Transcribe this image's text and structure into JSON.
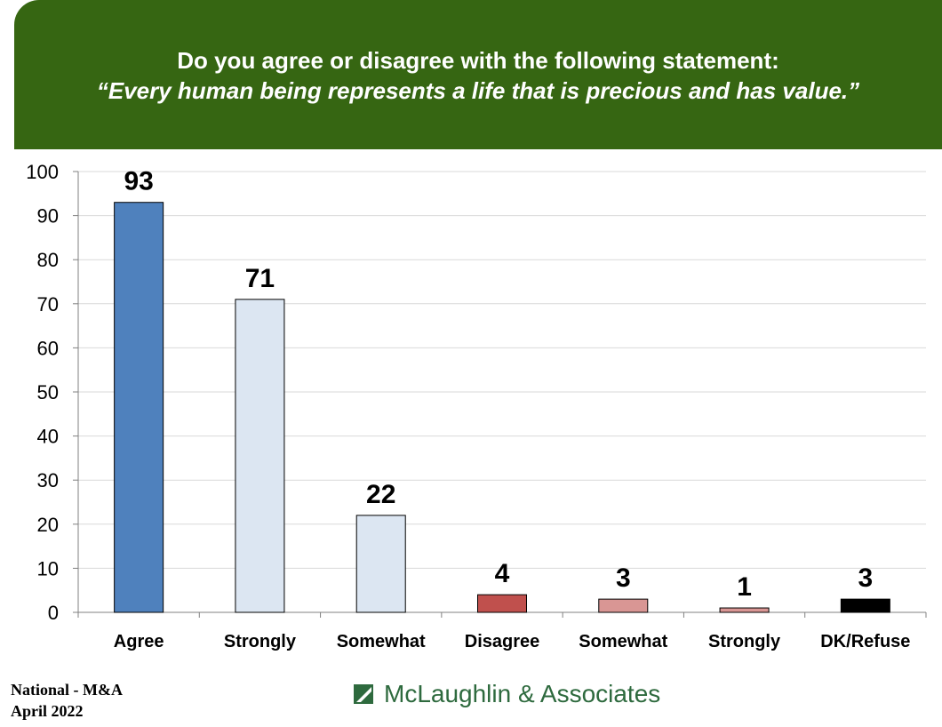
{
  "header": {
    "question": "Do you agree or disagree with the following statement:",
    "statement": "“Every human being represents a life that is precious and has value.”",
    "background_color": "#366612"
  },
  "chart_data": {
    "type": "bar",
    "categories": [
      "Agree",
      "Strongly",
      "Somewhat",
      "Disagree",
      "Somewhat",
      "Strongly",
      "DK/Refuse"
    ],
    "values": [
      93,
      71,
      22,
      4,
      3,
      1,
      3
    ],
    "data_labels": [
      "93",
      "71",
      "22",
      "4",
      "3",
      "1",
      "3"
    ],
    "bar_colors": [
      "#4f81bd",
      "#dce6f2",
      "#dce6f2",
      "#c0504d",
      "#d99694",
      "#d99694",
      "#000000"
    ],
    "ylim": [
      0,
      100
    ],
    "yticks": [
      "0",
      "10",
      "20",
      "30",
      "40",
      "50",
      "60",
      "70",
      "80",
      "90",
      "100"
    ],
    "ytick_values": [
      0,
      10,
      20,
      30,
      40,
      50,
      60,
      70,
      80,
      90,
      100
    ],
    "grid": true,
    "legend": "none"
  },
  "footer": {
    "source_line1": "National - M&A",
    "source_line2": "April 2022",
    "logo_text": "McLaughlin & Associates",
    "logo_color": "#2e6a3e"
  }
}
